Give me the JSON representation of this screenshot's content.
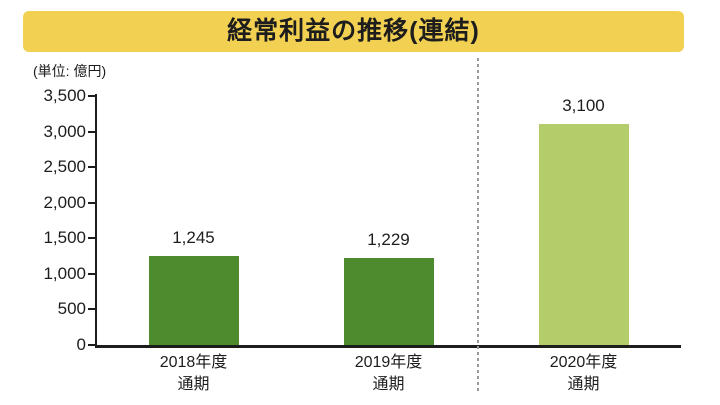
{
  "header": {
    "title": "経常利益の推移(連結)",
    "banner_color": "#F2D152",
    "title_color": "#1D1D1D"
  },
  "chart_data": {
    "type": "bar",
    "title": "経常利益の推移(連結)",
    "unit_label": "(単位: 億円)",
    "categories": [
      [
        "2018年度",
        "通期"
      ],
      [
        "2019年度",
        "通期"
      ],
      [
        "2020年度",
        "通期"
      ]
    ],
    "values": [
      1245,
      1229,
      3100
    ],
    "value_labels": [
      "1,245",
      "1,229",
      "3,100"
    ],
    "bar_colors": [
      "#4E8A2E",
      "#4E8A2E",
      "#B5CC6B"
    ],
    "ylim": [
      0,
      3500
    ],
    "ytick_interval": 500,
    "ytick_labels": [
      "0",
      "500",
      "1,000",
      "1,500",
      "2,000",
      "2,500",
      "3,000",
      "3,500"
    ],
    "axis_color": "#1D1D1D",
    "separator": {
      "after_category_index": 1,
      "style": "dashed",
      "color": "#999999"
    },
    "grid": false,
    "legend": null
  }
}
